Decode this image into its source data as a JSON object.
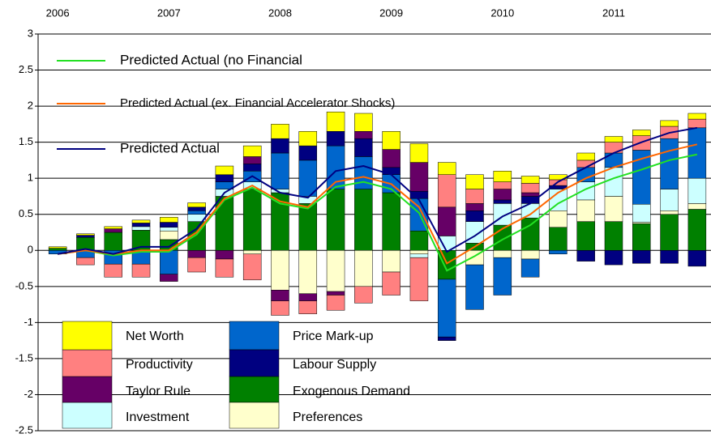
{
  "chart_data": {
    "type": "stacked_bar_line",
    "categories": [
      "2006",
      null,
      null,
      null,
      "2007",
      null,
      null,
      null,
      "2008",
      null,
      null,
      null,
      "2009",
      null,
      null,
      null,
      "2010",
      null,
      null,
      null,
      "2011",
      null,
      null,
      null
    ],
    "ylim": [
      -2.5,
      3
    ],
    "yticks": [
      -2.5,
      -2,
      -1.5,
      -1,
      -0.5,
      0,
      0.5,
      1,
      1.5,
      2,
      2.5,
      3
    ],
    "grid": true,
    "series": [
      {
        "name": "Exogenous Demand",
        "color": "#008000",
        "values": [
          0.03,
          0.18,
          0.25,
          0.28,
          0.15,
          0.4,
          0.75,
          0.85,
          0.8,
          0.65,
          0.85,
          0.85,
          0.8,
          0.27,
          -0.4,
          0.1,
          0.35,
          0.45,
          0.32,
          0.4,
          0.4,
          0.37,
          0.5,
          0.57
        ]
      },
      {
        "name": "Preferences",
        "color": "#ffffcc",
        "values": [
          0,
          0,
          0,
          0,
          0.12,
          0,
          0,
          -0.05,
          -0.55,
          -0.6,
          -0.57,
          -0.5,
          -0.3,
          -0.05,
          0,
          -0.2,
          -0.1,
          -0.12,
          0.23,
          0.3,
          0.35,
          0.02,
          0.05,
          0.08
        ]
      },
      {
        "name": "Investment",
        "color": "#ccffff",
        "values": [
          0,
          0,
          0,
          0.05,
          0.05,
          0.1,
          0.1,
          0.1,
          0.05,
          0.1,
          0,
          0,
          0,
          -0.05,
          0.2,
          0.3,
          0.3,
          0.2,
          0.3,
          0.25,
          0.4,
          0.25,
          0.3,
          0.35
        ]
      },
      {
        "name": "Price Mark-up",
        "color": "#0066cc",
        "values": [
          -0.05,
          -0.1,
          -0.19,
          -0.19,
          -0.33,
          0.05,
          0.1,
          0.15,
          0.5,
          0.5,
          0.6,
          0.45,
          0.25,
          0.45,
          -0.8,
          -0.62,
          -0.52,
          -0.25,
          -0.05,
          0.2,
          0.2,
          0.75,
          0.7,
          0.7
        ]
      },
      {
        "name": "Labour Supply",
        "color": "#000080",
        "values": [
          0,
          0.03,
          0,
          0.05,
          0.07,
          0.05,
          0.1,
          0.1,
          0.2,
          0.2,
          0.2,
          0.25,
          0.1,
          0.1,
          -0.05,
          0.15,
          0.05,
          0.1,
          0.05,
          -0.15,
          -0.2,
          -0.18,
          -0.18,
          -0.22
        ]
      },
      {
        "name": "Taylor Rule",
        "color": "#660066",
        "values": [
          0,
          0,
          0.05,
          0,
          -0.1,
          -0.1,
          -0.12,
          0.1,
          -0.15,
          -0.1,
          -0.05,
          0.1,
          0.25,
          0.4,
          0.4,
          0.1,
          0.15,
          0.05,
          0,
          0,
          0,
          0,
          0,
          0
        ]
      },
      {
        "name": "Productivity",
        "color": "#ff8080",
        "values": [
          0,
          -0.1,
          -0.18,
          -0.18,
          0,
          -0.2,
          -0.25,
          -0.36,
          -0.2,
          -0.18,
          -0.21,
          -0.23,
          -0.32,
          -0.6,
          0.45,
          0.2,
          0.1,
          0.13,
          0.08,
          0.1,
          0.15,
          0.2,
          0.17,
          0.12
        ]
      },
      {
        "name": "Net Worth",
        "color": "#ffff00",
        "values": [
          0.02,
          0.02,
          0.03,
          0.04,
          0.07,
          0.06,
          0.12,
          0.15,
          0.2,
          0.2,
          0.27,
          0.25,
          0.25,
          0.26,
          0.17,
          0.2,
          0.15,
          0.1,
          0.07,
          0.1,
          0.08,
          0.08,
          0.08,
          0.08
        ]
      }
    ],
    "lines": [
      {
        "name": "Predicted Actual (no Financial",
        "color": "#22e022",
        "values": [
          -0.05,
          0.0,
          -0.07,
          -0.02,
          -0.02,
          0.22,
          0.7,
          0.87,
          0.65,
          0.58,
          0.88,
          0.95,
          0.85,
          0.52,
          -0.28,
          -0.08,
          0.15,
          0.35,
          0.65,
          0.85,
          1.0,
          1.12,
          1.25,
          1.33
        ]
      },
      {
        "name": "Predicted Actual (ex. Financial Accelerator Shocks)",
        "color": "#ff6600",
        "values": [
          -0.05,
          0.0,
          -0.05,
          0.0,
          0.0,
          0.25,
          0.72,
          0.9,
          0.68,
          0.6,
          0.95,
          1.02,
          0.92,
          0.6,
          -0.18,
          0.05,
          0.3,
          0.5,
          0.8,
          1.0,
          1.15,
          1.27,
          1.38,
          1.47
        ]
      },
      {
        "name": "Predicted Actual",
        "color": "#000080",
        "values": [
          -0.05,
          0.02,
          -0.05,
          0.05,
          0.05,
          0.3,
          0.8,
          1.03,
          0.8,
          0.73,
          1.1,
          1.17,
          1.05,
          0.7,
          -0.02,
          0.2,
          0.47,
          0.65,
          0.95,
          1.15,
          1.35,
          1.5,
          1.63,
          1.7
        ]
      }
    ]
  }
}
